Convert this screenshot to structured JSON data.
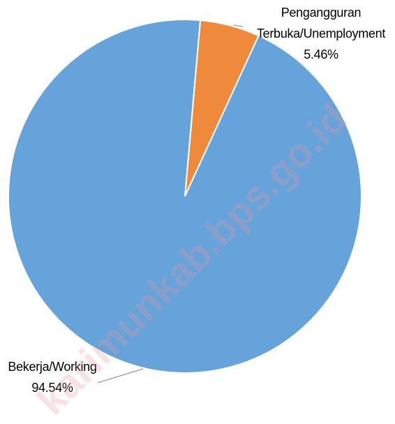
{
  "chart_data": {
    "type": "pie",
    "categories": [
      "Pengangguran Terbuka/Unemployment",
      "Bekerja/Working"
    ],
    "values": [
      5.46,
      94.54
    ],
    "value_labels": [
      "5.46%",
      "94.54%"
    ],
    "colors": [
      "#ef8a3c",
      "#65a3da"
    ],
    "watermark": "karimunkab.bps.go.id"
  }
}
